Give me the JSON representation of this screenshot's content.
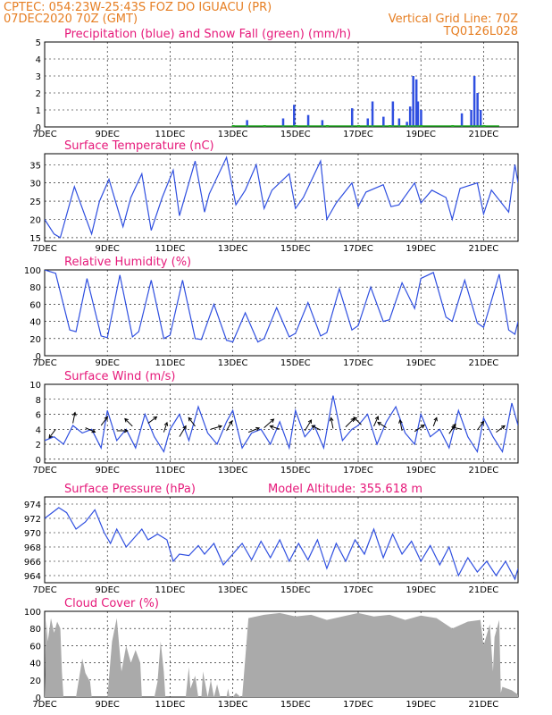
{
  "header": {
    "line1": "CPTEC:   054:23W-25:43S   FOZ DO IGUACU (PR)",
    "line2": "07DEC2020 70Z (GMT)",
    "grid_note": "Vertical Grid Line: 70Z",
    "code": "TQ0126L028",
    "model_altitude": "Model Altitude: 355.618 m"
  },
  "colors": {
    "header": "#e67e22",
    "title": "#e6197a",
    "line": "#2f4fe0",
    "snow": "#22aa22",
    "cloud": "#aaaaaa"
  },
  "chart_data": [
    {
      "type": "bar",
      "title": "Precipitation (blue) and Snow Fall (green) (mm/h)",
      "x_unit": "day of Dec 2020",
      "xlim": [
        7,
        22.1
      ],
      "ylim": [
        0,
        5
      ],
      "yticks": [
        0,
        1,
        2,
        3,
        4,
        5
      ],
      "xtick_labels": [
        "7DEC",
        "9DEC",
        "11DEC",
        "13DEC",
        "15DEC",
        "17DEC",
        "19DEC",
        "21DEC"
      ],
      "series": [
        {
          "name": "Precipitation",
          "color": "#2f4fe0",
          "x": [
            13.45,
            14.6,
            14.95,
            15.4,
            15.85,
            16.8,
            17.3,
            17.45,
            17.8,
            18.1,
            18.3,
            18.55,
            18.65,
            18.75,
            18.85,
            18.9,
            19.0,
            20.3,
            20.6,
            20.7,
            20.8,
            20.9
          ],
          "values": [
            0.4,
            0.5,
            1.3,
            0.7,
            0.4,
            1.1,
            0.5,
            1.5,
            0.6,
            1.5,
            0.5,
            0.3,
            1.2,
            3.0,
            2.8,
            1.5,
            1.0,
            0.8,
            1.0,
            3.0,
            2.0,
            1.0
          ]
        },
        {
          "name": "Snow Fall",
          "color": "#22aa22",
          "x": [
            13.0,
            14.0,
            15.0,
            16.0,
            17.0,
            18.0,
            19.0,
            20.0,
            21.0
          ],
          "values": [
            0,
            0,
            0,
            0,
            0,
            0,
            0,
            0,
            0
          ]
        }
      ]
    },
    {
      "type": "line",
      "title": "Surface Temperature (nC)",
      "xlim": [
        7,
        22.1
      ],
      "ylim": [
        14,
        38
      ],
      "yticks": [
        15,
        20,
        25,
        30,
        35
      ],
      "xtick_labels": [
        "7DEC",
        "9DEC",
        "11DEC",
        "13DEC",
        "15DEC",
        "17DEC",
        "19DEC",
        "21DEC"
      ],
      "series": [
        {
          "name": "Temperature",
          "color": "#2f4fe0",
          "x": [
            7.0,
            7.3,
            7.5,
            7.95,
            8.5,
            8.75,
            9.05,
            9.5,
            9.75,
            10.1,
            10.4,
            10.75,
            11.1,
            11.3,
            11.8,
            12.1,
            12.25,
            12.8,
            13.1,
            13.4,
            13.75,
            14.0,
            14.25,
            14.8,
            15.0,
            15.25,
            15.8,
            16.0,
            16.3,
            16.8,
            17.0,
            17.25,
            17.8,
            18.05,
            18.3,
            18.8,
            19.0,
            19.35,
            19.8,
            20.0,
            20.25,
            20.8,
            21.0,
            21.25,
            21.8,
            22.0,
            22.1
          ],
          "values": [
            20.0,
            16.0,
            15.0,
            29.0,
            16.0,
            25.0,
            31.0,
            18.0,
            26.0,
            32.5,
            17.0,
            26.0,
            33.5,
            21.0,
            36.0,
            22.0,
            27.0,
            37.0,
            24.0,
            28.0,
            35.0,
            23.0,
            28.0,
            32.5,
            23.0,
            26.0,
            36.0,
            20.0,
            24.5,
            30.0,
            23.5,
            27.5,
            29.5,
            23.5,
            24.0,
            30.0,
            24.5,
            28.0,
            26.0,
            20.0,
            28.5,
            30.0,
            21.5,
            28.0,
            22.0,
            35.0,
            30.0
          ]
        }
      ]
    },
    {
      "type": "line",
      "title": "Relative Humidity (%)",
      "xlim": [
        7,
        22.1
      ],
      "ylim": [
        0,
        100
      ],
      "yticks": [
        0,
        20,
        40,
        60,
        80,
        100
      ],
      "xtick_labels": [
        "7DEC",
        "9DEC",
        "11DEC",
        "13DEC",
        "15DEC",
        "17DEC",
        "19DEC",
        "21DEC"
      ],
      "series": [
        {
          "name": "Humidity",
          "color": "#2f4fe0",
          "x": [
            7.0,
            7.35,
            7.8,
            8.0,
            8.35,
            8.8,
            9.0,
            9.4,
            9.8,
            10.0,
            10.4,
            10.8,
            11.0,
            11.4,
            11.8,
            12.0,
            12.4,
            12.8,
            13.0,
            13.4,
            13.8,
            14.0,
            14.4,
            14.8,
            15.0,
            15.4,
            15.8,
            16.0,
            16.4,
            16.8,
            17.0,
            17.4,
            17.8,
            18.0,
            18.4,
            18.8,
            19.0,
            19.4,
            19.8,
            20.0,
            20.4,
            20.8,
            21.0,
            21.5,
            21.8,
            22.0,
            22.1
          ],
          "values": [
            100.0,
            96.0,
            30.0,
            28.0,
            90.0,
            23.0,
            21.0,
            94.0,
            22.0,
            28.0,
            88.0,
            20.0,
            24.0,
            88.0,
            20.0,
            19.0,
            60.0,
            18.0,
            16.0,
            50.0,
            16.0,
            20.0,
            56.0,
            22.0,
            26.0,
            62.0,
            23.0,
            27.0,
            78.0,
            30.0,
            35.0,
            80.0,
            40.0,
            42.0,
            85.0,
            55.0,
            90.0,
            97.0,
            45.0,
            40.0,
            88.0,
            38.0,
            33.0,
            95.0,
            30.0,
            25.0,
            40.0
          ]
        }
      ]
    },
    {
      "type": "line",
      "title": "Surface Wind (m/s)",
      "xlim": [
        7,
        22.1
      ],
      "ylim": [
        -0.5,
        10
      ],
      "yticks": [
        0,
        2,
        4,
        6,
        8,
        10
      ],
      "xtick_labels": [
        "7DEC",
        "9DEC",
        "11DEC",
        "13DEC",
        "15DEC",
        "17DEC",
        "19DEC",
        "21DEC"
      ],
      "series": [
        {
          "name": "Wind speed",
          "color": "#2f4fe0",
          "x": [
            7.0,
            7.3,
            7.6,
            7.9,
            8.2,
            8.5,
            8.8,
            9.0,
            9.3,
            9.6,
            9.9,
            10.2,
            10.5,
            10.8,
            11.0,
            11.3,
            11.6,
            11.9,
            12.2,
            12.5,
            12.8,
            13.0,
            13.3,
            13.6,
            13.9,
            14.2,
            14.5,
            14.8,
            15.0,
            15.3,
            15.6,
            15.9,
            16.2,
            16.5,
            16.8,
            17.0,
            17.3,
            17.6,
            17.9,
            18.2,
            18.5,
            18.8,
            19.0,
            19.3,
            19.6,
            19.9,
            20.2,
            20.5,
            20.8,
            21.0,
            21.3,
            21.6,
            21.9,
            22.1
          ],
          "values": [
            2.5,
            3.0,
            2.0,
            4.5,
            3.5,
            4.0,
            1.5,
            6.5,
            2.5,
            4.0,
            1.5,
            6.0,
            3.0,
            1.0,
            4.0,
            6.0,
            2.5,
            7.0,
            3.5,
            2.0,
            5.0,
            6.5,
            1.5,
            3.5,
            4.0,
            2.0,
            5.0,
            1.5,
            6.5,
            3.0,
            4.5,
            1.5,
            8.5,
            2.5,
            4.0,
            4.5,
            6.0,
            2.0,
            5.0,
            7.0,
            3.5,
            2.0,
            6.0,
            3.0,
            4.0,
            1.5,
            6.5,
            3.0,
            1.0,
            5.5,
            3.0,
            1.0,
            7.5,
            4.5
          ]
        }
      ]
    },
    {
      "type": "line",
      "title": "Surface Pressure (hPa)",
      "xlim": [
        7,
        22.1
      ],
      "ylim": [
        963,
        975
      ],
      "yticks": [
        964,
        966,
        968,
        970,
        972,
        974
      ],
      "xtick_labels": [
        "7DEC",
        "9DEC",
        "11DEC",
        "13DEC",
        "15DEC",
        "17DEC",
        "19DEC",
        "21DEC"
      ],
      "series": [
        {
          "name": "Pressure",
          "color": "#2f4fe0",
          "x": [
            7.0,
            7.15,
            7.45,
            7.7,
            8.0,
            8.3,
            8.6,
            8.9,
            9.1,
            9.3,
            9.6,
            9.9,
            10.1,
            10.3,
            10.6,
            10.9,
            11.1,
            11.3,
            11.6,
            11.9,
            12.1,
            12.4,
            12.7,
            13.0,
            13.3,
            13.6,
            13.9,
            14.2,
            14.5,
            14.8,
            15.1,
            15.4,
            15.7,
            16.0,
            16.3,
            16.6,
            16.9,
            17.2,
            17.5,
            17.8,
            18.1,
            18.4,
            18.7,
            19.0,
            19.3,
            19.6,
            19.9,
            20.2,
            20.5,
            20.8,
            21.1,
            21.4,
            21.7,
            22.0,
            22.1
          ],
          "values": [
            972.0,
            972.5,
            973.5,
            972.8,
            970.5,
            971.5,
            973.2,
            970.0,
            968.5,
            970.5,
            968.0,
            969.5,
            970.5,
            969.0,
            969.8,
            969.0,
            966.0,
            967.0,
            966.8,
            968.2,
            967.0,
            968.5,
            965.5,
            967.0,
            968.5,
            966.2,
            968.8,
            966.5,
            969.0,
            966.0,
            968.5,
            966.2,
            969.0,
            965.0,
            968.5,
            966.0,
            969.0,
            967.0,
            970.5,
            966.5,
            969.8,
            967.0,
            968.8,
            966.0,
            968.2,
            965.5,
            968.0,
            964.0,
            966.5,
            964.5,
            966.0,
            964.0,
            966.0,
            963.5,
            965.0
          ]
        }
      ]
    },
    {
      "type": "area",
      "title": "Cloud Cover (%)",
      "xlim": [
        7,
        22.1
      ],
      "ylim": [
        0,
        100
      ],
      "yticks": [
        0,
        20,
        40,
        60,
        80,
        100
      ],
      "xtick_labels": [
        "7DEC",
        "9DEC",
        "11DEC",
        "13DEC",
        "15DEC",
        "17DEC",
        "19DEC",
        "21DEC"
      ],
      "series": [
        {
          "name": "Cloud cover",
          "color": "#aaaaaa",
          "x": [
            7.0,
            7.05,
            7.1,
            7.2,
            7.3,
            7.4,
            7.5,
            7.55,
            7.6,
            8.0,
            8.2,
            8.3,
            8.45,
            8.5,
            8.6,
            9.0,
            9.15,
            9.3,
            9.45,
            9.6,
            9.75,
            9.9,
            10.05,
            10.1,
            10.5,
            10.6,
            10.7,
            10.8,
            10.85,
            10.9,
            11.5,
            11.6,
            11.65,
            11.7,
            11.8,
            11.9,
            12.0,
            12.05,
            12.2,
            12.3,
            12.4,
            12.5,
            12.6,
            12.8,
            12.85,
            12.9,
            13.0,
            13.1,
            13.25,
            13.3,
            13.5,
            14.0,
            14.5,
            15.0,
            15.5,
            16.0,
            16.5,
            17.0,
            17.5,
            18.0,
            18.5,
            19.0,
            19.5,
            20.0,
            20.5,
            20.9,
            21.0,
            21.2,
            21.3,
            21.35,
            21.5,
            21.55,
            21.6,
            21.9,
            22.1
          ],
          "values": [
            0.0,
            90.0,
            65.0,
            92.0,
            75.0,
            88.0,
            80.0,
            30.0,
            0.0,
            0.0,
            45.0,
            28.0,
            18.0,
            0.0,
            0.0,
            0.0,
            65.0,
            92.0,
            30.0,
            60.0,
            40.0,
            55.0,
            40.0,
            0.0,
            0.0,
            18.0,
            65.0,
            30.0,
            0.0,
            0.0,
            0.0,
            35.0,
            10.0,
            15.0,
            25.0,
            0.0,
            0.0,
            30.0,
            0.0,
            20.0,
            0.0,
            15.0,
            0.0,
            0.0,
            10.0,
            0.0,
            0.0,
            5.0,
            0.0,
            0.0,
            92.0,
            96.0,
            98.0,
            94.0,
            96.0,
            90.0,
            94.0,
            98.0,
            94.0,
            96.0,
            90.0,
            95.0,
            92.0,
            80.0,
            88.0,
            90.0,
            60.0,
            85.0,
            30.0,
            70.0,
            90.0,
            5.0,
            12.0,
            8.0,
            3.0
          ]
        }
      ]
    }
  ]
}
